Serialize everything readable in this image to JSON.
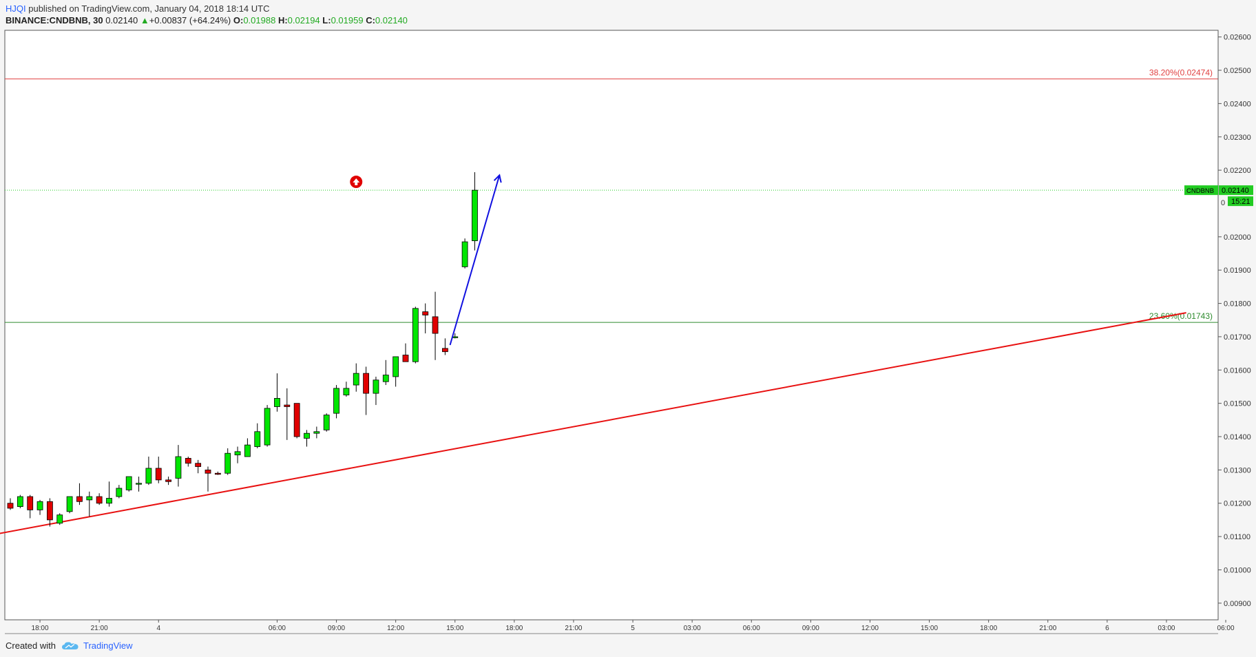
{
  "header": {
    "user": "HJQI",
    "published_text": " published on TradingView.com, January 04, 2018 18:14 UTC",
    "symbol": "BINANCE:CNDBNB, 30",
    "last": "0.02140",
    "change": "+0.00837 (+64.24%)",
    "change_arrow": "▲",
    "o_label": "O:",
    "o": "0.01988",
    "h_label": "H:",
    "h": "0.02194",
    "l_label": "L:",
    "l": "0.01959",
    "c_label": "C:",
    "c": "0.02140"
  },
  "footer": {
    "created_with": "Created with",
    "brand": "TradingView",
    "logo_icon": "tradingview-cloud-icon"
  },
  "colors": {
    "up": "#00e600",
    "down": "#e00000",
    "fib_high": "#e04040",
    "fib_low": "#2e8b2e",
    "trendline": "#e81010",
    "arrow": "#1010e0",
    "last_price": "#22cc22"
  },
  "chart_data": {
    "type": "candlestick",
    "symbol": "CNDBNB",
    "interval": "30",
    "ylim": [
      0.0085,
      0.0262
    ],
    "y_ticks": [
      "0.02600",
      "0.02500",
      "0.02400",
      "0.02300",
      "0.02200",
      "0.02000",
      "0.01900",
      "0.01800",
      "0.01700",
      "0.01600",
      "0.01500",
      "0.01400",
      "0.01300",
      "0.01200",
      "0.01100",
      "0.01000",
      "0.00900"
    ],
    "y_tick_values": [
      0.026,
      0.025,
      0.024,
      0.023,
      0.022,
      0.02,
      0.019,
      0.018,
      0.017,
      0.016,
      0.015,
      0.014,
      0.013,
      0.012,
      0.011,
      0.01,
      0.009
    ],
    "x_ticks": [
      {
        "label": "18:00",
        "bar": 3
      },
      {
        "label": "21:00",
        "bar": 9
      },
      {
        "label": "4",
        "bar": 15
      },
      {
        "label": "06:00",
        "bar": 27
      },
      {
        "label": "09:00",
        "bar": 33
      },
      {
        "label": "12:00",
        "bar": 39
      },
      {
        "label": "15:00",
        "bar": 45
      },
      {
        "label": "18:00",
        "bar": 51
      },
      {
        "label": "21:00",
        "bar": 57
      },
      {
        "label": "5",
        "bar": 63
      },
      {
        "label": "03:00",
        "bar": 69
      },
      {
        "label": "06:00",
        "bar": 75
      },
      {
        "label": "09:00",
        "bar": 81
      },
      {
        "label": "12:00",
        "bar": 87
      },
      {
        "label": "15:00",
        "bar": 93
      },
      {
        "label": "18:00",
        "bar": 99
      },
      {
        "label": "21:00",
        "bar": 105
      },
      {
        "label": "6",
        "bar": 111
      },
      {
        "label": "03:00",
        "bar": 117
      },
      {
        "label": "06:00",
        "bar": 123
      }
    ],
    "candles": [
      [
        0.012,
        0.01215,
        0.0118,
        0.01185
      ],
      [
        0.0119,
        0.01225,
        0.01185,
        0.0122
      ],
      [
        0.0122,
        0.01225,
        0.01155,
        0.0118
      ],
      [
        0.0118,
        0.0121,
        0.01165,
        0.01205
      ],
      [
        0.01205,
        0.01215,
        0.0113,
        0.0115
      ],
      [
        0.0114,
        0.0117,
        0.01135,
        0.01165
      ],
      [
        0.01175,
        0.0122,
        0.0117,
        0.0122
      ],
      [
        0.0122,
        0.0126,
        0.01195,
        0.01205
      ],
      [
        0.0121,
        0.01235,
        0.0116,
        0.0122
      ],
      [
        0.0122,
        0.0123,
        0.01195,
        0.012
      ],
      [
        0.012,
        0.01265,
        0.0119,
        0.01215
      ],
      [
        0.0122,
        0.01255,
        0.01215,
        0.01245
      ],
      [
        0.0124,
        0.0128,
        0.01235,
        0.0128
      ],
      [
        0.0126,
        0.0128,
        0.01235,
        0.0126
      ],
      [
        0.0126,
        0.0134,
        0.01255,
        0.01305
      ],
      [
        0.01305,
        0.0134,
        0.0126,
        0.0127
      ],
      [
        0.0127,
        0.0128,
        0.01255,
        0.01265
      ],
      [
        0.01275,
        0.01375,
        0.0125,
        0.0134
      ],
      [
        0.01335,
        0.0134,
        0.0131,
        0.0132
      ],
      [
        0.0132,
        0.0133,
        0.0129,
        0.0131
      ],
      [
        0.013,
        0.0131,
        0.01235,
        0.0129
      ],
      [
        0.0129,
        0.01295,
        0.01285,
        0.01288
      ],
      [
        0.0129,
        0.01365,
        0.01285,
        0.0135
      ],
      [
        0.01345,
        0.0137,
        0.0132,
        0.01355
      ],
      [
        0.0134,
        0.01395,
        0.0134,
        0.01375
      ],
      [
        0.0137,
        0.0144,
        0.01365,
        0.01415
      ],
      [
        0.01375,
        0.01495,
        0.0137,
        0.01485
      ],
      [
        0.0149,
        0.0159,
        0.01475,
        0.01515
      ],
      [
        0.01495,
        0.01545,
        0.0139,
        0.0149
      ],
      [
        0.015,
        0.015,
        0.01395,
        0.014
      ],
      [
        0.01395,
        0.0142,
        0.0137,
        0.0141
      ],
      [
        0.0141,
        0.0143,
        0.01395,
        0.01415
      ],
      [
        0.0142,
        0.0147,
        0.01415,
        0.01465
      ],
      [
        0.0147,
        0.01555,
        0.01455,
        0.01545
      ],
      [
        0.01525,
        0.01565,
        0.0152,
        0.01545
      ],
      [
        0.01555,
        0.0162,
        0.01535,
        0.0159
      ],
      [
        0.0159,
        0.0161,
        0.01465,
        0.0153
      ],
      [
        0.0153,
        0.0158,
        0.01495,
        0.0157
      ],
      [
        0.01565,
        0.0163,
        0.01555,
        0.01585
      ],
      [
        0.0158,
        0.0164,
        0.0155,
        0.0164
      ],
      [
        0.01645,
        0.0168,
        0.0163,
        0.01625
      ],
      [
        0.01625,
        0.0179,
        0.0162,
        0.01785
      ],
      [
        0.01775,
        0.018,
        0.0171,
        0.01765
      ],
      [
        0.0176,
        0.01835,
        0.0163,
        0.0171
      ],
      [
        0.01665,
        0.01695,
        0.01645,
        0.01655
      ],
      [
        0.017,
        0.0171,
        0.01695,
        0.017
      ],
      [
        0.0191,
        0.01995,
        0.01905,
        0.01985
      ],
      [
        0.01988,
        0.02194,
        0.01959,
        0.0214
      ]
    ],
    "fib_levels": [
      {
        "label": "38.20%(0.02474)",
        "value": 0.02474,
        "color_key": "fib_high"
      },
      {
        "label": "23.60%(0.01743)",
        "value": 0.01743,
        "color_key": "fib_low"
      }
    ],
    "trendline": {
      "from": {
        "bar": -3.5,
        "value": 0.01096
      },
      "to": {
        "bar": 119,
        "value": 0.01772
      }
    },
    "projection_arrow": {
      "from": {
        "bar": 44.5,
        "value": 0.01675
      },
      "to": {
        "bar": 49.5,
        "value": 0.02185
      }
    },
    "marker": {
      "icon": "red-up-arrow-circle-icon",
      "bar": 35,
      "value": 0.02165
    },
    "last_price": {
      "value": 0.0214,
      "label": "CNDBNB",
      "price": "0.02140",
      "countdown": "15:21",
      "partial_tick": "0"
    }
  }
}
